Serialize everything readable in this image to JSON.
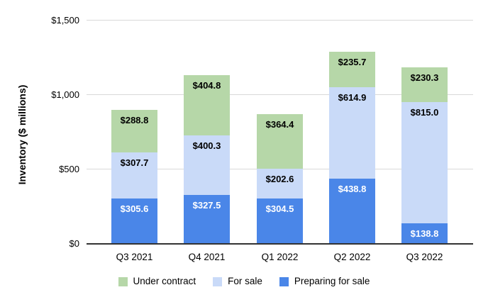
{
  "chart_data": {
    "type": "bar",
    "stacked": true,
    "title": "",
    "ylabel": "Inventory ($ millions)",
    "xlabel": "",
    "ylim": [
      0,
      1500
    ],
    "grid": true,
    "legend_position": "bottom",
    "value_prefix": "$",
    "categories": [
      "Q3 2021",
      "Q4 2021",
      "Q1 2022",
      "Q2 2022",
      "Q3 2022"
    ],
    "y_ticks": [
      {
        "label": "$0",
        "value": 0
      },
      {
        "label": "$500",
        "value": 500
      },
      {
        "label": "$1,000",
        "value": 1000
      },
      {
        "label": "$1,500",
        "value": 1500
      }
    ],
    "series": [
      {
        "name": "Preparing for sale",
        "color": "#4a86e8",
        "label_color": "#ffffff",
        "values": [
          305.6,
          327.5,
          304.5,
          438.8,
          138.8
        ]
      },
      {
        "name": "For sale",
        "color": "#c9daf8",
        "label_color": "#000000",
        "values": [
          307.7,
          400.3,
          202.6,
          614.9,
          815.0
        ]
      },
      {
        "name": "Under contract",
        "color": "#b6d7a8",
        "label_color": "#000000",
        "values": [
          288.8,
          404.8,
          364.4,
          235.7,
          230.3
        ]
      }
    ],
    "legend_order": [
      "Under contract",
      "For sale",
      "Preparing for sale"
    ],
    "data_labels": {
      "q3_2021": [
        "$305.6",
        "$307.7",
        "$288.8"
      ],
      "q4_2021": [
        "$327.5",
        "$400.3",
        "$404.8"
      ],
      "q1_2022": [
        "$304.5",
        "$202.6",
        "$364.4"
      ],
      "q2_2022": [
        "$438.8",
        "$614.9",
        "$235.7"
      ],
      "q3_2022": [
        "$138.8",
        "$815.0",
        "$230.3"
      ]
    },
    "colors": {
      "gridline": "#d9d9d9",
      "baseline": "#333333",
      "axis_text": "#000000",
      "background": "#ffffff"
    }
  }
}
